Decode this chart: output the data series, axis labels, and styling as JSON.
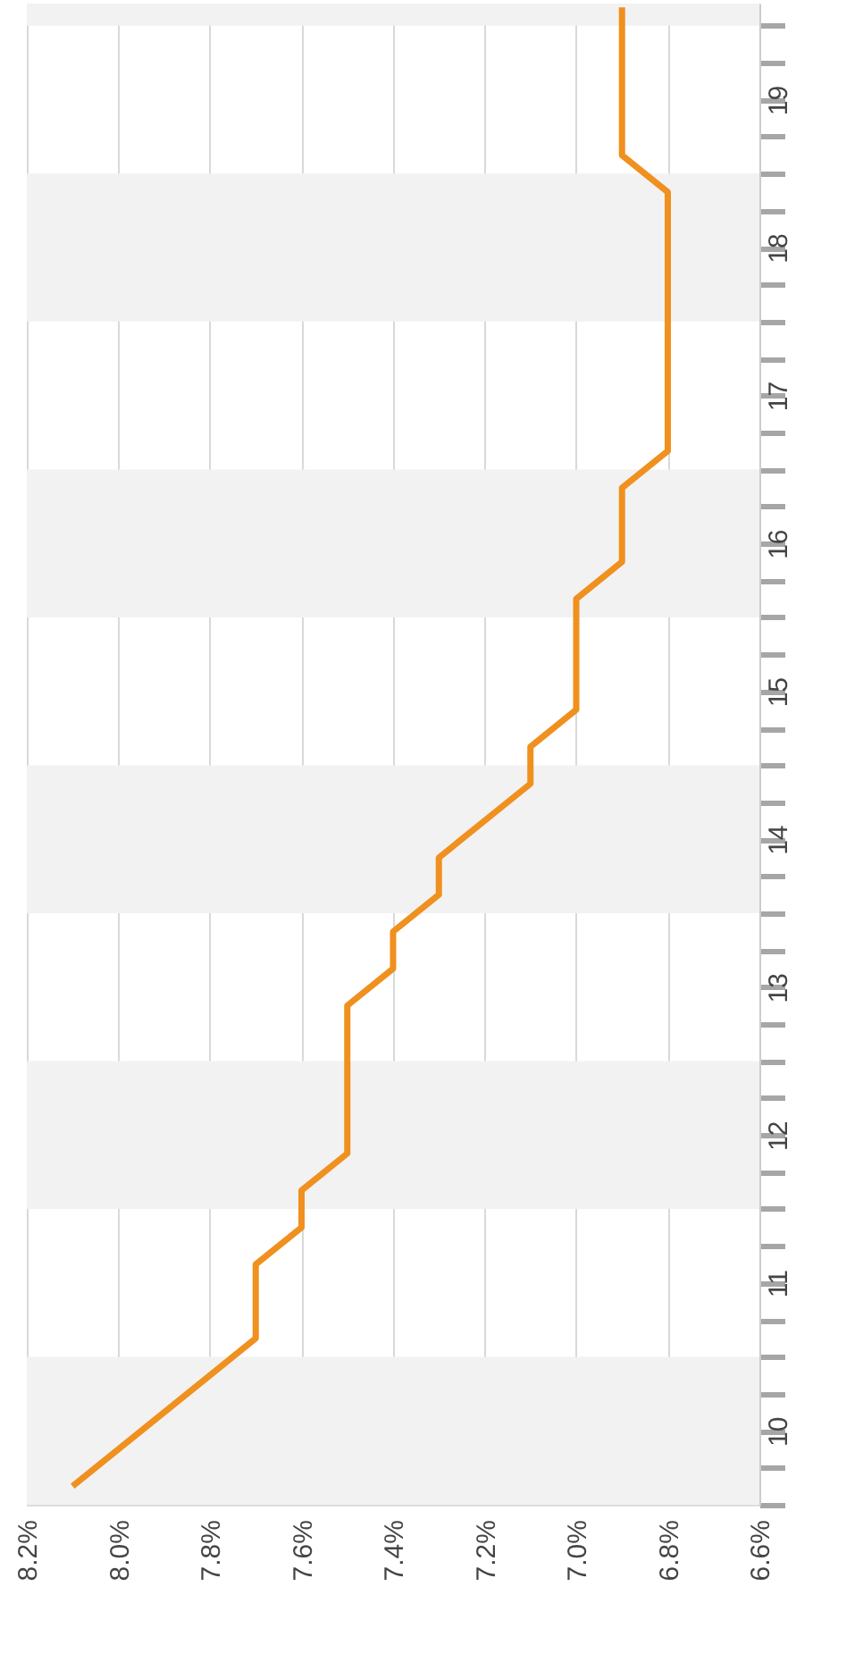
{
  "chart_data": {
    "type": "line",
    "series": [
      {
        "color": "#f0901e",
        "x": [
          8.1,
          7.7,
          7.7,
          7.6,
          7.6,
          7.5,
          7.5,
          7.4,
          7.4,
          7.3,
          7.3,
          7.1,
          7.1,
          7.0,
          7.0,
          6.9,
          6.9,
          6.8,
          6.8,
          6.9,
          6.9
        ],
        "values": [
          9.625,
          10.625,
          11.125,
          11.375,
          11.625,
          11.875,
          12.875,
          13.125,
          13.375,
          13.625,
          13.875,
          14.375,
          14.625,
          14.875,
          15.625,
          15.875,
          16.375,
          16.625,
          18.375,
          18.625,
          19.625
        ]
      }
    ],
    "xlim": [
      8.2,
      6.6
    ],
    "xticks": [
      {
        "value": 8.2,
        "label": "8.2%"
      },
      {
        "value": 8.0,
        "label": "8.0%"
      },
      {
        "value": 7.8,
        "label": "7.8%"
      },
      {
        "value": 7.6,
        "label": "7.6%"
      },
      {
        "value": 7.4,
        "label": "7.4%"
      },
      {
        "value": 7.2,
        "label": "7.2%"
      },
      {
        "value": 7.0,
        "label": "7.0%"
      },
      {
        "value": 6.8,
        "label": "6.8%"
      },
      {
        "value": 6.6,
        "label": "6.6%"
      }
    ],
    "ylim": [
      9.5,
      19.65
    ],
    "yticks": [
      {
        "value": 9.5,
        "label": null
      },
      {
        "value": 9.75,
        "label": null
      },
      10,
      {
        "value": 10.25,
        "label": null
      },
      {
        "value": 10.5,
        "label": null
      },
      {
        "value": 10.75,
        "label": null
      },
      11,
      {
        "value": 11.25,
        "label": null
      },
      {
        "value": 11.5,
        "label": null
      },
      {
        "value": 11.75,
        "label": null
      },
      12,
      {
        "value": 12.25,
        "label": null
      },
      {
        "value": 12.5,
        "label": null
      },
      {
        "value": 12.75,
        "label": null
      },
      13,
      {
        "value": 13.25,
        "label": null
      },
      {
        "value": 13.5,
        "label": null
      },
      {
        "value": 13.75,
        "label": null
      },
      14,
      {
        "value": 14.25,
        "label": null
      },
      {
        "value": 14.5,
        "label": null
      },
      {
        "value": 14.75,
        "label": null
      },
      15,
      {
        "value": 15.25,
        "label": null
      },
      {
        "value": 15.5,
        "label": null
      },
      {
        "value": 15.75,
        "label": null
      },
      16,
      {
        "value": 16.25,
        "label": null
      },
      {
        "value": 16.5,
        "label": null
      },
      {
        "value": 16.75,
        "label": null
      },
      17,
      {
        "value": 17.25,
        "label": null
      },
      {
        "value": 17.5,
        "label": null
      },
      {
        "value": 17.75,
        "label": null
      },
      18,
      {
        "value": 18.25,
        "label": null
      },
      {
        "value": 18.5,
        "label": null
      },
      {
        "value": 18.75,
        "label": null
      },
      19,
      {
        "value": 19.25,
        "label": null
      },
      {
        "value": 19.5,
        "label": null
      }
    ],
    "grid": "x",
    "bands": [
      {
        "axis": "y",
        "from": 9.5,
        "to": 10.5,
        "color": "#f2f2f2"
      },
      {
        "axis": "y",
        "from": 11.5,
        "to": 12.5,
        "color": "#f2f2f2"
      },
      {
        "axis": "y",
        "from": 13.5,
        "to": 14.5,
        "color": "#f2f2f2"
      },
      {
        "axis": "y",
        "from": 15.5,
        "to": 16.5,
        "color": "#f2f2f2"
      },
      {
        "axis": "y",
        "from": 17.5,
        "to": 18.5,
        "color": "#f2f2f2"
      },
      {
        "axis": "y",
        "from": 19.5,
        "to": 19.65,
        "color": "#f2f2f2"
      }
    ]
  }
}
